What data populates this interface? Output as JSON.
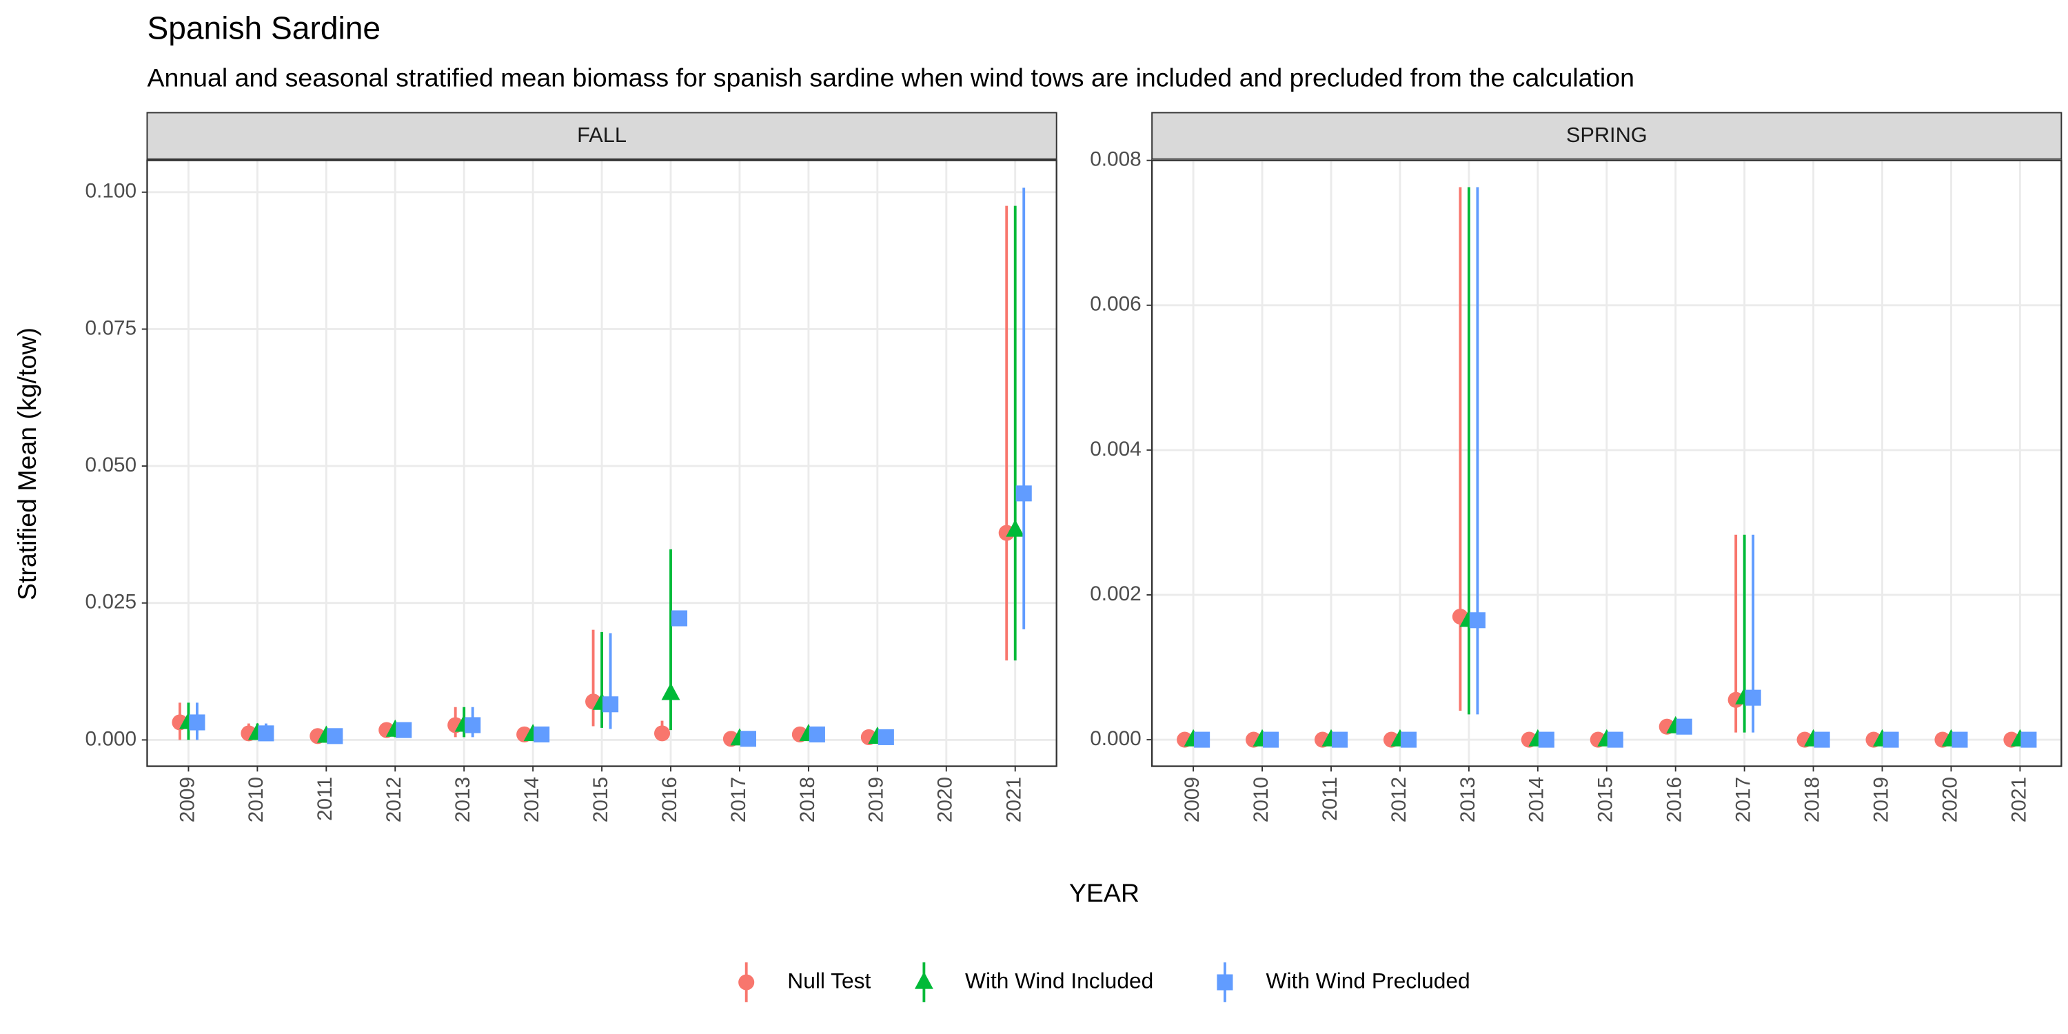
{
  "title": "Spanish Sardine",
  "subtitle": "Annual and seasonal stratified mean biomass for spanish sardine when wind tows are included and precluded from the calculation",
  "ylabel": "Stratified Mean (kg/tow)",
  "xlabel": "YEAR",
  "chart_data": [
    {
      "type": "errorpoint",
      "panel": "FALL",
      "x": [
        2009,
        2010,
        2011,
        2012,
        2013,
        2014,
        2015,
        2016,
        2017,
        2018,
        2019,
        2020,
        2021
      ],
      "xlim": [
        2008.4,
        2021.6
      ],
      "xticks": [
        2009,
        2010,
        2011,
        2012,
        2013,
        2014,
        2015,
        2016,
        2017,
        2018,
        2019,
        2020,
        2021
      ],
      "ylim": [
        -0.0048,
        0.1058
      ],
      "yticks": [
        {
          "value": 0,
          "label": "0.000"
        },
        {
          "value": 0.025,
          "label": "0.025"
        },
        {
          "value": 0.05,
          "label": "0.050"
        },
        {
          "value": 0.075,
          "label": "0.075"
        },
        {
          "value": 0.1,
          "label": "0.100"
        }
      ],
      "grid": true,
      "series": [
        {
          "name": "Null Test",
          "color": "#F8766D",
          "shape": "circle",
          "values": [
            0.0032,
            0.0012,
            0.0007,
            0.0018,
            0.0027,
            0.001,
            0.007,
            0.0012,
            0.0002,
            0.001,
            0.0005,
            null,
            0.0378
          ],
          "lower": [
            0.0,
            0.0,
            0.0,
            0.0005,
            0.0005,
            0.0,
            0.0025,
            0.0,
            0.0,
            0.0,
            0.0,
            null,
            0.0145
          ],
          "upper": [
            0.0068,
            0.003,
            0.0015,
            0.003,
            0.006,
            0.002,
            0.0201,
            0.0035,
            0.0008,
            0.002,
            0.0012,
            null,
            0.0975
          ]
        },
        {
          "name": "With Wind Included",
          "color": "#00BA38",
          "shape": "triangle",
          "values": [
            0.0032,
            0.0012,
            0.0007,
            0.0018,
            0.0027,
            0.001,
            0.0067,
            0.0085,
            0.0002,
            0.001,
            0.0005,
            null,
            0.0383
          ],
          "lower": [
            0.0,
            0.0,
            0.0,
            0.0005,
            0.0005,
            0.0,
            0.0022,
            0.0018,
            0.0,
            0.0,
            0.0,
            null,
            0.0145
          ],
          "upper": [
            0.0068,
            0.003,
            0.0015,
            0.003,
            0.006,
            0.002,
            0.0197,
            0.0348,
            0.0008,
            0.002,
            0.0012,
            null,
            0.0975
          ]
        },
        {
          "name": "With Wind Precluded",
          "color": "#619CFF",
          "shape": "square",
          "values": [
            0.0032,
            0.0012,
            0.0007,
            0.0018,
            0.0027,
            0.001,
            0.0065,
            0.0222,
            0.0002,
            0.001,
            0.0005,
            null,
            0.045
          ],
          "lower": [
            0.0,
            0.0,
            0.0,
            0.0005,
            0.0005,
            0.0,
            0.002,
            null,
            0.0,
            0.0,
            0.0,
            null,
            0.0202
          ],
          "upper": [
            0.0068,
            0.003,
            0.0015,
            0.003,
            0.006,
            0.002,
            0.0195,
            null,
            0.0008,
            0.002,
            0.0012,
            null,
            0.1008
          ]
        }
      ]
    },
    {
      "type": "errorpoint",
      "panel": "SPRING",
      "x": [
        2009,
        2010,
        2011,
        2012,
        2013,
        2014,
        2015,
        2016,
        2017,
        2018,
        2019,
        2020,
        2021
      ],
      "xlim": [
        2008.4,
        2021.6
      ],
      "xticks": [
        2009,
        2010,
        2011,
        2012,
        2013,
        2014,
        2015,
        2016,
        2017,
        2018,
        2019,
        2020,
        2021
      ],
      "ylim": [
        -0.000366,
        0.008
      ],
      "yticks": [
        {
          "value": 0,
          "label": "0.000"
        },
        {
          "value": 0.002,
          "label": "0.002"
        },
        {
          "value": 0.004,
          "label": "0.004"
        },
        {
          "value": 0.006,
          "label": "0.006"
        },
        {
          "value": 0.008,
          "label": "0.008"
        }
      ],
      "grid": true,
      "series": [
        {
          "name": "Null Test",
          "color": "#F8766D",
          "shape": "circle",
          "values": [
            0,
            0,
            0,
            0,
            0.0017,
            0,
            0,
            0.00018,
            0.00055,
            0,
            0,
            0,
            0
          ],
          "lower": [
            0,
            0,
            0,
            0,
            0.0004,
            0,
            0,
            0.00018,
            0.0001,
            0,
            0,
            0,
            0
          ],
          "upper": [
            0,
            0,
            0,
            0,
            0.00763,
            0,
            0,
            0.00018,
            0.00283,
            0,
            0,
            0,
            0
          ]
        },
        {
          "name": "With Wind Included",
          "color": "#00BA38",
          "shape": "triangle",
          "values": [
            0,
            0,
            0,
            0,
            0.00165,
            0,
            0,
            0.00018,
            0.00058,
            0,
            0,
            0,
            0
          ],
          "lower": [
            0,
            0,
            0,
            0,
            0.00035,
            0,
            0,
            0.00018,
            0.0001,
            0,
            0,
            0,
            0
          ],
          "upper": [
            0,
            0,
            0,
            0,
            0.00763,
            0,
            0,
            0.00018,
            0.00283,
            0,
            0,
            0,
            0
          ]
        },
        {
          "name": "With Wind Precluded",
          "color": "#619CFF",
          "shape": "square",
          "values": [
            0,
            0,
            0,
            0,
            0.00165,
            0,
            0,
            0.00018,
            0.00058,
            0,
            0,
            0,
            0
          ],
          "lower": [
            0,
            0,
            0,
            0,
            0.00035,
            0,
            0,
            0.00018,
            0.0001,
            0,
            0,
            0,
            0
          ],
          "upper": [
            0,
            0,
            0,
            0,
            0.00763,
            0,
            0,
            0.00018,
            0.00283,
            0,
            0,
            0,
            0
          ]
        }
      ]
    }
  ]
}
